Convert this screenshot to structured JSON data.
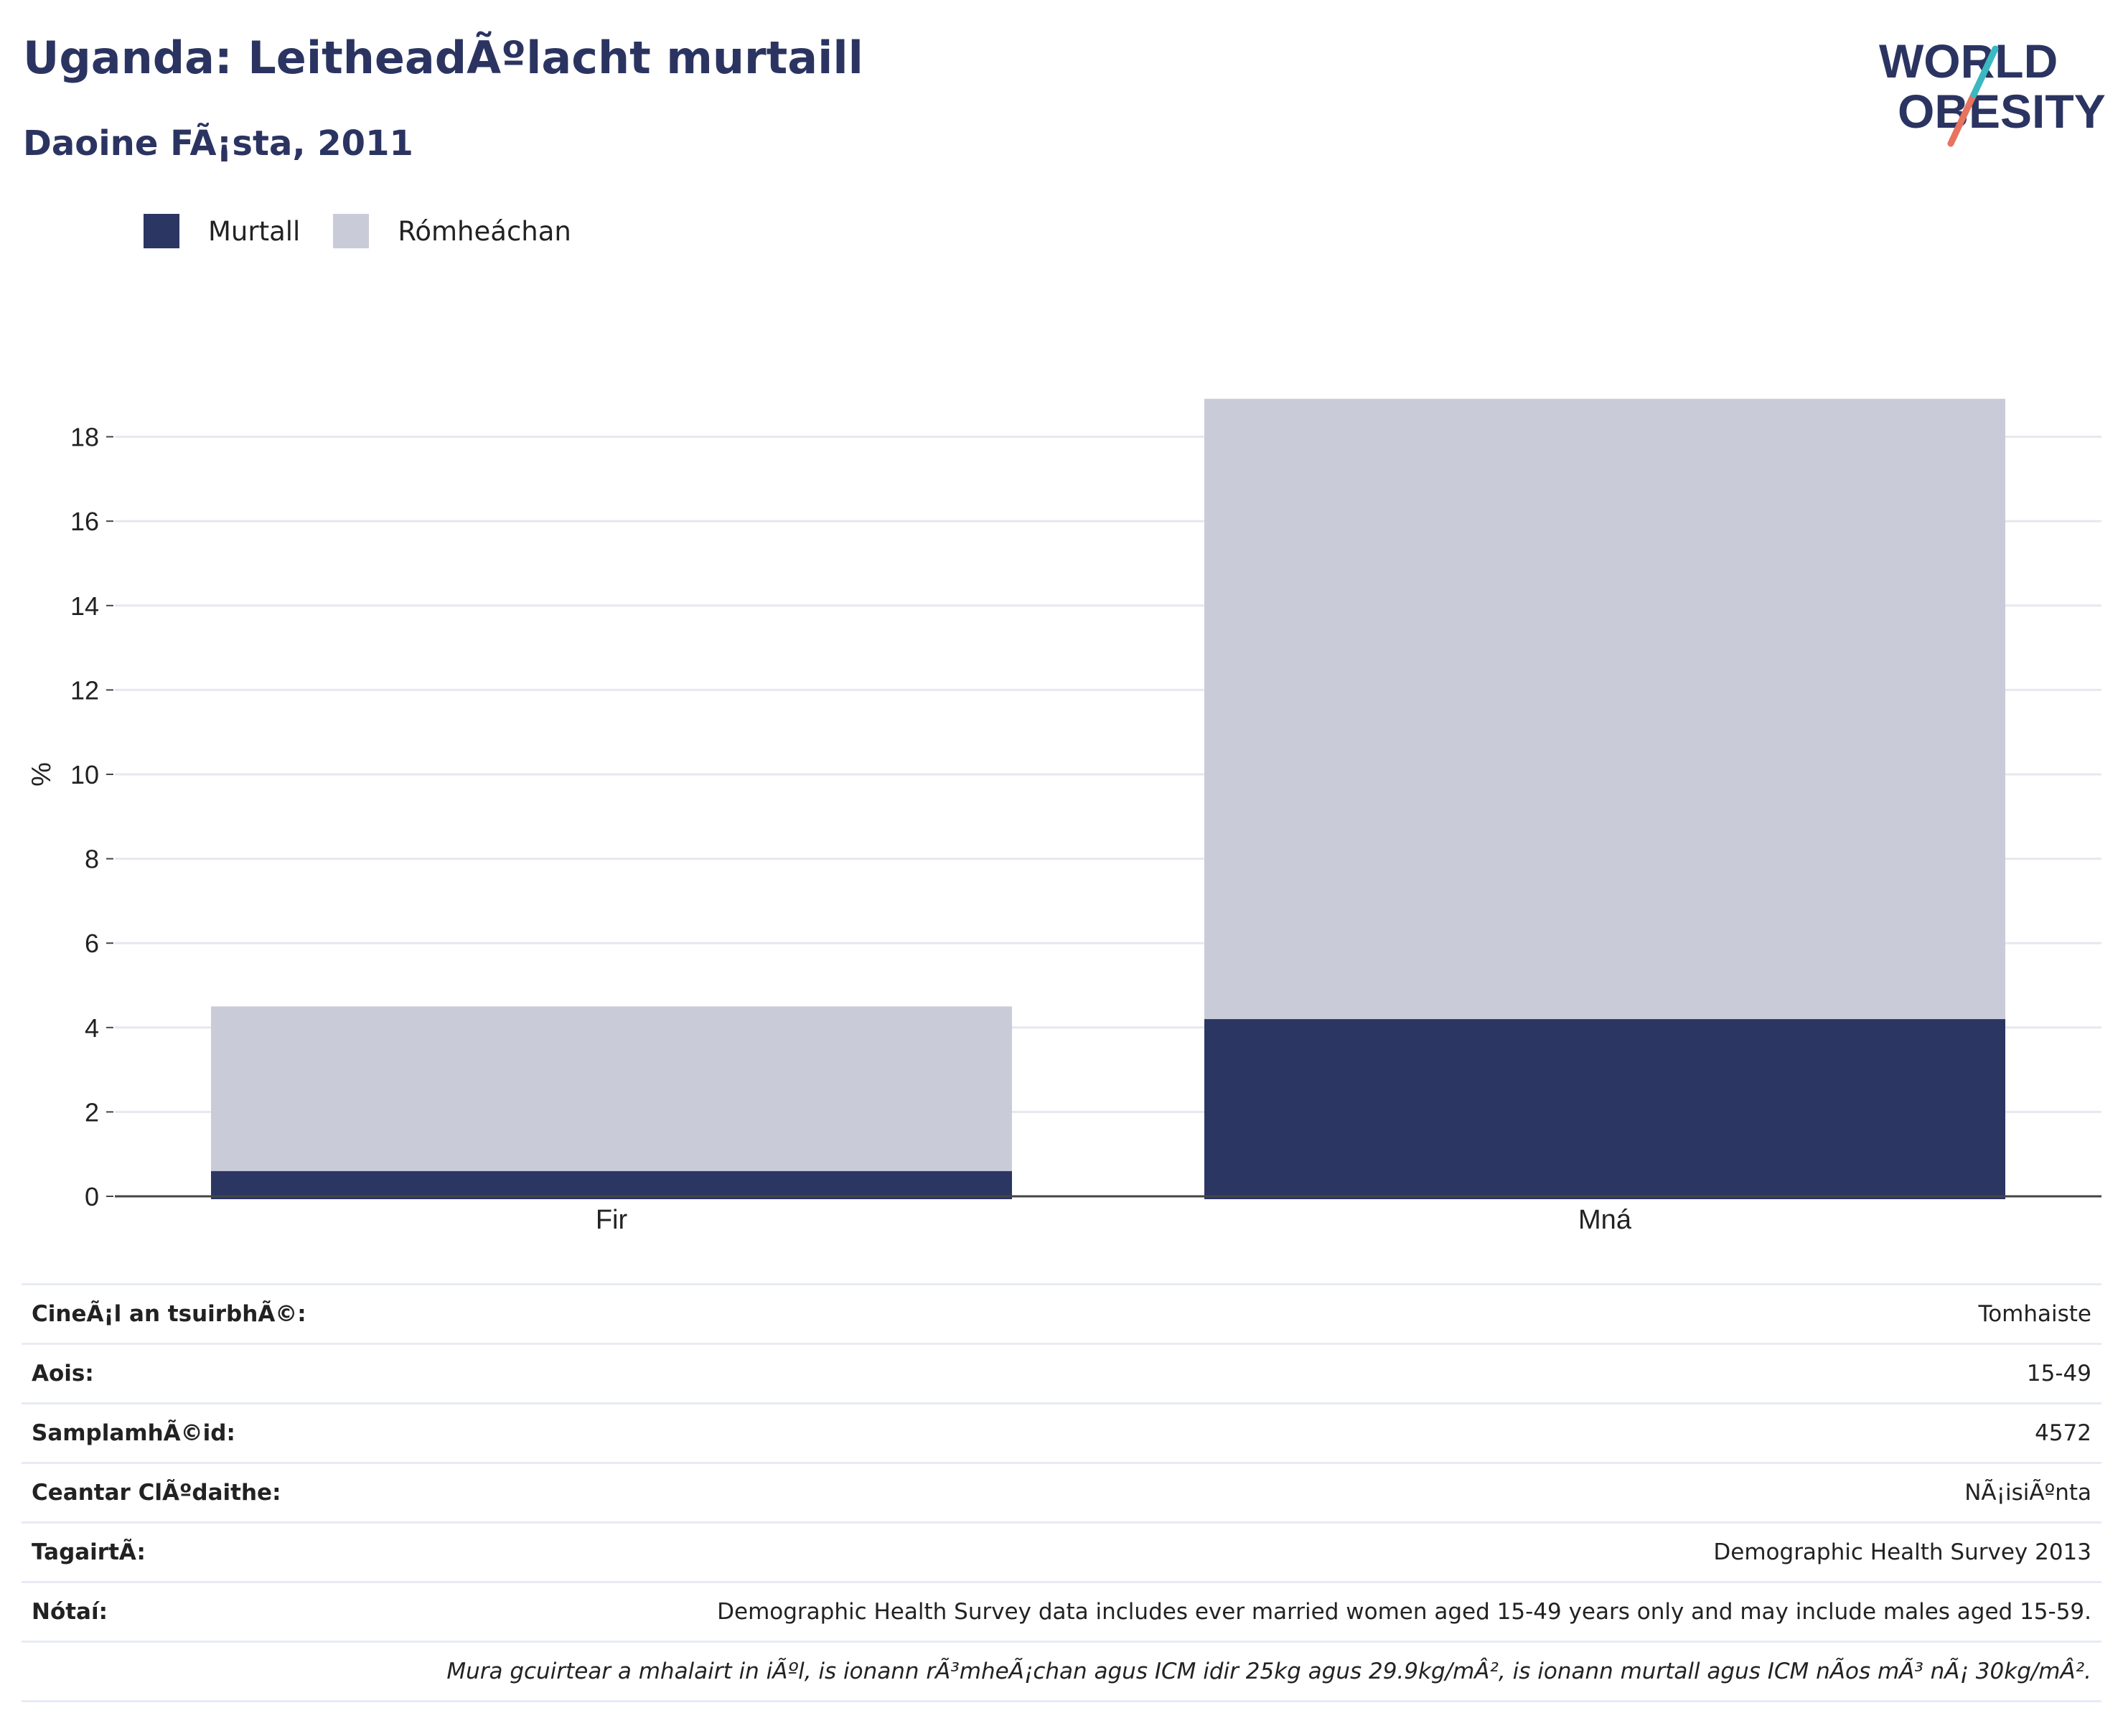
{
  "header": {
    "title": "Uganda: LeitheadÃºlacht murtaill",
    "subtitle": "Daoine FÃ¡sta, 2011"
  },
  "logo": {
    "line1": "WORLD",
    "line2": "OBESITY",
    "colors": {
      "text": "#2b3461",
      "slash_top": "#3bb8c0",
      "slash_bottom": "#e8735f"
    }
  },
  "legend": [
    {
      "label": "Murtall",
      "color": "#2b3663"
    },
    {
      "label": "Rómheáchan",
      "color": "#c9ccd8"
    }
  ],
  "chart_data": {
    "type": "bar",
    "stacked": true,
    "categories": [
      "Fir",
      "Mná"
    ],
    "series": [
      {
        "name": "Murtall",
        "values": [
          0.6,
          4.2
        ],
        "color": "#2b3663"
      },
      {
        "name": "Rómheáchan",
        "values": [
          3.9,
          14.7
        ],
        "color": "#c9ccd8"
      }
    ],
    "ylabel": "%",
    "xlabel": "",
    "ylim": [
      0,
      19
    ],
    "yticks": [
      0,
      2,
      4,
      6,
      8,
      10,
      12,
      14,
      16,
      18
    ],
    "grid": true
  },
  "info": {
    "rows": [
      {
        "label": "CineÃ¡l an tsuirbhÃ©:",
        "value": "Tomhaiste"
      },
      {
        "label": "Aois:",
        "value": "15-49"
      },
      {
        "label": "SamplamhÃ©id:",
        "value": "4572"
      },
      {
        "label": "Ceantar ClÃºdaithe:",
        "value": "NÃ¡isiÃºnta"
      },
      {
        "label": "TagairtÃ:",
        "value": "Demographic Health Survey 2013"
      },
      {
        "label": "Nótaí:",
        "value": "Demographic Health Survey data includes ever married women aged 15-49 years only and may include males aged 15-59."
      }
    ],
    "footnote": "Mura gcuirtear a mhalairt in iÃºl, is ionann rÃ³mheÃ¡chan agus ICM idir 25kg agus 29.9kg/mÂ², is ionann murtall agus ICM nÃos mÃ³ nÃ¡ 30kg/mÂ²."
  }
}
